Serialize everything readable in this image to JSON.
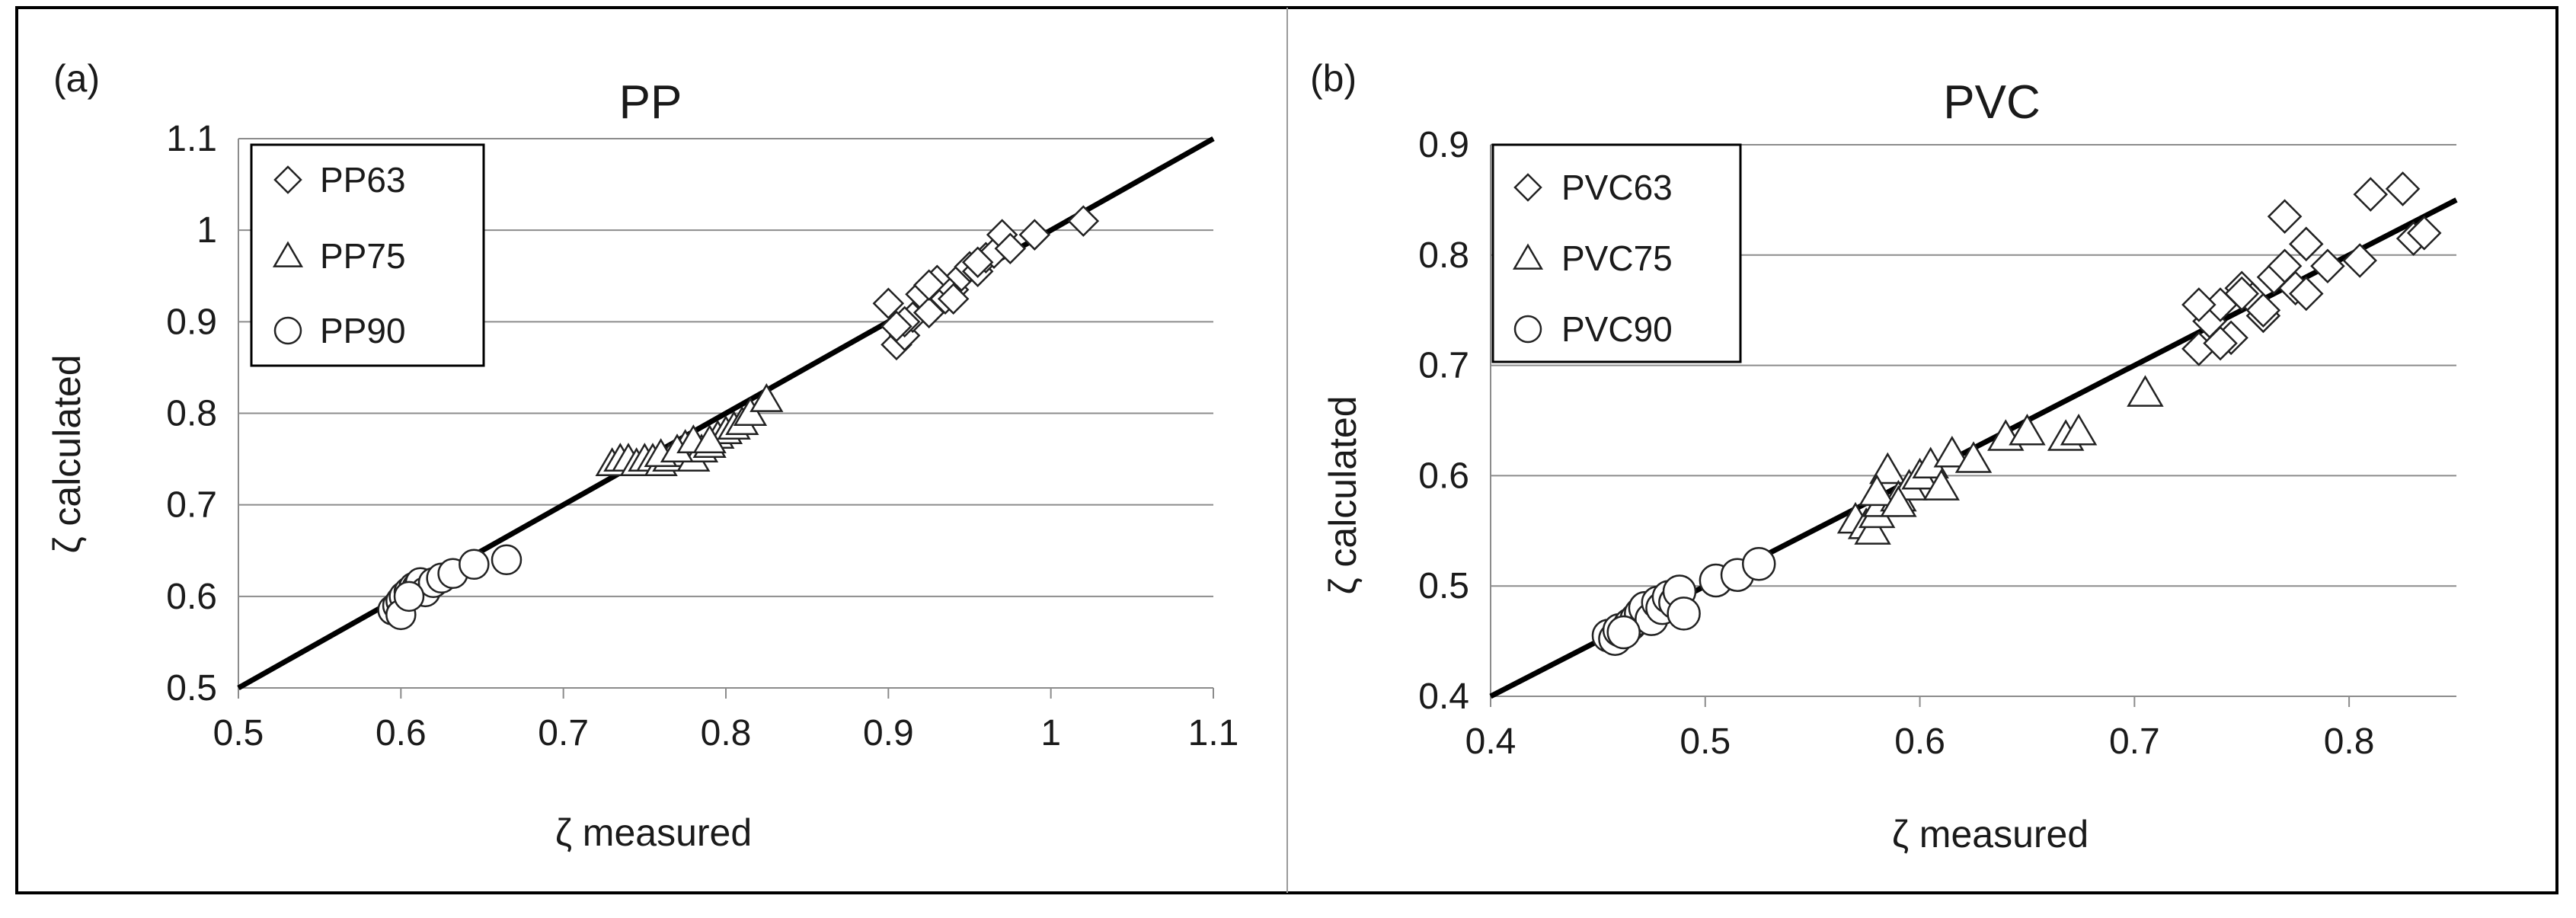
{
  "chart_data": [
    {
      "type": "scatter",
      "panel_label": "(a)",
      "title": "PP",
      "xlabel": "ζ measured",
      "ylabel": "ζ calculated",
      "xlim": [
        0.5,
        1.1
      ],
      "ylim": [
        0.5,
        1.1
      ],
      "xticks": [
        "0.5",
        "0.6",
        "0.7",
        "0.8",
        "0.9",
        "1",
        "1.1"
      ],
      "yticks": [
        "0.5",
        "0.6",
        "0.7",
        "0.8",
        "0.9",
        "1",
        "1.1"
      ],
      "grid": "horizontal",
      "legend_position": "top-left",
      "reference_line": {
        "x": [
          0.5,
          1.1
        ],
        "y": [
          0.5,
          1.1
        ]
      },
      "series": [
        {
          "name": "PP63",
          "marker": "diamond",
          "x": [
            0.9,
            0.905,
            0.91,
            0.915,
            0.92,
            0.925,
            0.93,
            0.935,
            0.94,
            0.945,
            0.95,
            0.955,
            0.96,
            0.965,
            0.97,
            0.975,
            0.99,
            1.02,
            0.91,
            0.925,
            0.94,
            0.955,
            0.905
          ],
          "y": [
            0.92,
            0.875,
            0.885,
            0.905,
            0.93,
            0.91,
            0.945,
            0.925,
            0.935,
            0.95,
            0.96,
            0.955,
            0.97,
            0.975,
            0.995,
            0.98,
            0.995,
            1.01,
            0.9,
            0.94,
            0.925,
            0.965,
            0.895
          ]
        },
        {
          "name": "PP75",
          "marker": "triangle",
          "x": [
            0.73,
            0.735,
            0.74,
            0.745,
            0.75,
            0.755,
            0.76,
            0.765,
            0.77,
            0.775,
            0.78,
            0.785,
            0.79,
            0.795,
            0.8,
            0.805,
            0.81,
            0.815,
            0.825,
            0.76,
            0.77,
            0.78,
            0.79
          ],
          "y": [
            0.745,
            0.75,
            0.75,
            0.745,
            0.75,
            0.75,
            0.745,
            0.75,
            0.755,
            0.765,
            0.75,
            0.76,
            0.765,
            0.775,
            0.78,
            0.785,
            0.79,
            0.8,
            0.815,
            0.755,
            0.76,
            0.77,
            0.77
          ]
        },
        {
          "name": "PP90",
          "marker": "circle",
          "x": [
            0.595,
            0.598,
            0.6,
            0.602,
            0.605,
            0.608,
            0.61,
            0.612,
            0.615,
            0.62,
            0.625,
            0.632,
            0.645,
            0.665,
            0.6,
            0.605
          ],
          "y": [
            0.585,
            0.59,
            0.595,
            0.6,
            0.605,
            0.61,
            0.61,
            0.615,
            0.605,
            0.615,
            0.62,
            0.625,
            0.635,
            0.64,
            0.58,
            0.6
          ]
        }
      ]
    },
    {
      "type": "scatter",
      "panel_label": "(b)",
      "title": "PVC",
      "xlabel": "ζ measured",
      "ylabel": "ζ calculated",
      "xlim": [
        0.4,
        0.85
      ],
      "ylim": [
        0.4,
        0.9
      ],
      "xticks": [
        "0.4",
        "0.5",
        "0.6",
        "0.7",
        "0.8"
      ],
      "yticks": [
        "0.4",
        "0.5",
        "0.6",
        "0.7",
        "0.8",
        "0.9"
      ],
      "grid": "horizontal",
      "legend_position": "top-left",
      "reference_line": {
        "x": [
          0.4,
          0.85
        ],
        "y": [
          0.4,
          0.85
        ]
      },
      "series": [
        {
          "name": "PVC63",
          "marker": "diamond",
          "x": [
            0.73,
            0.735,
            0.74,
            0.745,
            0.75,
            0.755,
            0.76,
            0.765,
            0.77,
            0.775,
            0.78,
            0.79,
            0.805,
            0.81,
            0.825,
            0.83,
            0.835,
            0.77,
            0.78,
            0.74,
            0.75,
            0.73,
            0.76
          ],
          "y": [
            0.715,
            0.74,
            0.755,
            0.725,
            0.77,
            0.76,
            0.745,
            0.78,
            0.835,
            0.77,
            0.81,
            0.79,
            0.795,
            0.855,
            0.86,
            0.815,
            0.82,
            0.79,
            0.765,
            0.72,
            0.765,
            0.755,
            0.75
          ]
        },
        {
          "name": "PVC75",
          "marker": "triangle",
          "x": [
            0.57,
            0.575,
            0.578,
            0.58,
            0.582,
            0.585,
            0.59,
            0.595,
            0.6,
            0.605,
            0.61,
            0.615,
            0.625,
            0.64,
            0.65,
            0.668,
            0.674,
            0.705,
            0.58,
            0.59
          ],
          "y": [
            0.56,
            0.555,
            0.55,
            0.565,
            0.575,
            0.605,
            0.58,
            0.59,
            0.6,
            0.61,
            0.59,
            0.62,
            0.615,
            0.635,
            0.64,
            0.635,
            0.64,
            0.675,
            0.585,
            0.575
          ]
        },
        {
          "name": "PVC90",
          "marker": "circle",
          "x": [
            0.455,
            0.458,
            0.46,
            0.465,
            0.468,
            0.47,
            0.472,
            0.475,
            0.478,
            0.48,
            0.483,
            0.486,
            0.488,
            0.49,
            0.505,
            0.515,
            0.525,
            0.462
          ],
          "y": [
            0.455,
            0.452,
            0.46,
            0.465,
            0.47,
            0.475,
            0.48,
            0.47,
            0.485,
            0.48,
            0.49,
            0.485,
            0.495,
            0.475,
            0.505,
            0.51,
            0.52,
            0.458
          ]
        }
      ]
    }
  ]
}
